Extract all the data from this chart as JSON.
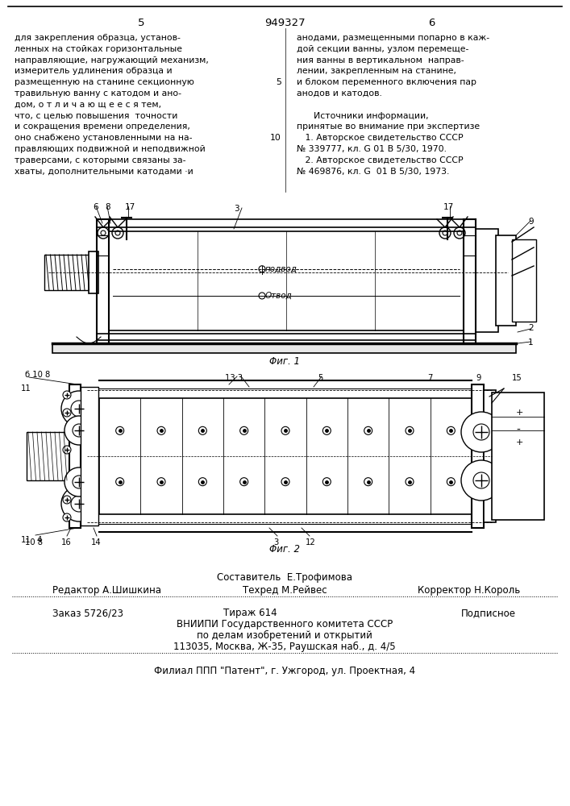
{
  "page_number_left": "5",
  "patent_number": "949327",
  "page_number_right": "6",
  "col_left_lines": [
    "для закрепления образца, установ-",
    "ленных на стойках горизонтальные",
    "направляющие, нагружающий механизм,",
    "измеритель удлинения образца и",
    "размещенную на станине секционную",
    "травильную ванну с катодом и ано-",
    "дом, о т л и ч а ю щ е е с я тем,",
    "что, с целью повышения  точности",
    "и сокращения времени определения,",
    "оно снабжено установленными на на-",
    "правляющих подвижной и неподвижной",
    "траверсами, с которыми связаны за-",
    "хваты, дополнительными катодами ·и"
  ],
  "col_right_lines": [
    "анодами, размещенными попарно в каж-",
    "дой секции ванны, узлом перемеще-",
    "ния ванны в вертикальном  направ-",
    "лении, закрепленным на станине,",
    "и блоком переменного включения пар",
    "анодов и катодов.",
    "",
    "      Источники информации,",
    "принятые во внимание при экспертизе",
    "   1. Авторское свидетельство СССР",
    "№ 339777, кл. G 01 В 5/30, 1970.",
    "   2. Авторское свидетельство СССР",
    "№ 469876, кл. G  01 В 5/30, 1973."
  ],
  "line_num_5_idx": 4,
  "line_num_10_idx": 9,
  "fig1_caption": "Φиг. 1",
  "fig2_caption": "Φиг. 2",
  "footer_composer": "Составитель  Е.Трофимова",
  "footer_editor": "Редактор А.Шишкина",
  "footer_techred": "Техред М.Рейвес",
  "footer_corrector": "Корректор Н.Король",
  "footer_order": "Заказ 5726/23",
  "footer_tirazh": "Тираж 614",
  "footer_podpisnoe": "Подписное",
  "footer_vniip": "ВНИИПИ Государственного комитета СССР",
  "footer_po_delam": "по делам изобретений и открытий",
  "footer_address": "113035, Москва, Ж-35, Раушская наб., д. 4/5",
  "footer_filial": "Филиал ППП \"Патент\", г. Ужгород, ул. Проектная, 4",
  "bg_color": "#ffffff"
}
